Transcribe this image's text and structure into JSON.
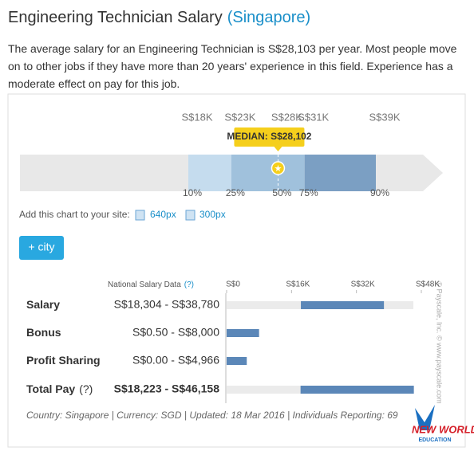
{
  "header": {
    "title": "Engineering Technician Salary",
    "location": "(Singapore)"
  },
  "description": "The average salary for an Engineering Technician is S$28,103 per year. Most people move on to other jobs if they have more than 20 years' experience in this field. Experience has a moderate effect on pay for this job.",
  "percentile_chart": {
    "percentiles": [
      "10%",
      "25%",
      "50%",
      "75%",
      "90%"
    ],
    "values": [
      18304,
      23000,
      28102,
      31000,
      38780
    ],
    "value_labels": [
      "S$18K",
      "S$23K",
      "S$28K",
      "S$31K",
      "S$39K"
    ],
    "colors": [
      "#c5dcee",
      "#a0c1dc",
      "#a0c1dc",
      "#7b9fc3"
    ],
    "median": {
      "value": 28102,
      "label": "MEDIAN: S$28,102"
    }
  },
  "embed": {
    "text": "Add this chart to your site:",
    "options": [
      "640px",
      "300px"
    ]
  },
  "button": "+ city",
  "salary_table": {
    "header": "National Salary Data",
    "help": "(?)",
    "xlim": [
      0,
      48000
    ],
    "xticks": [
      {
        "value": 0,
        "label": "S$0"
      },
      {
        "value": 16000,
        "label": "S$16K"
      },
      {
        "value": 32000,
        "label": "S$32K"
      },
      {
        "value": 48000,
        "label": "S$48K"
      }
    ],
    "color": "#5b87b8",
    "rows": [
      {
        "name": "Salary",
        "low": 18304,
        "high": 38780,
        "range_label": "S$18,304 - S$38,780"
      },
      {
        "name": "Bonus",
        "low": 0.5,
        "high": 8000,
        "range_label": "S$0.50 - S$8,000"
      },
      {
        "name": "Profit Sharing",
        "low": 0,
        "high": 4966,
        "range_label": "S$0.00 - S$4,966"
      },
      {
        "name": "Total Pay",
        "help": "(?)",
        "low": 18223,
        "high": 46158,
        "range_label": "S$18,223 - S$46,158"
      }
    ],
    "footer": "Country: Singapore | Currency: SGD | Updated: 18 Mar 2016 | Individuals Reporting: 69",
    "copyright": "© Payscale, Inc. © www.payscale.com"
  },
  "logo": {
    "line1": "NEW WORLD",
    "line2": "EDUCATION"
  }
}
